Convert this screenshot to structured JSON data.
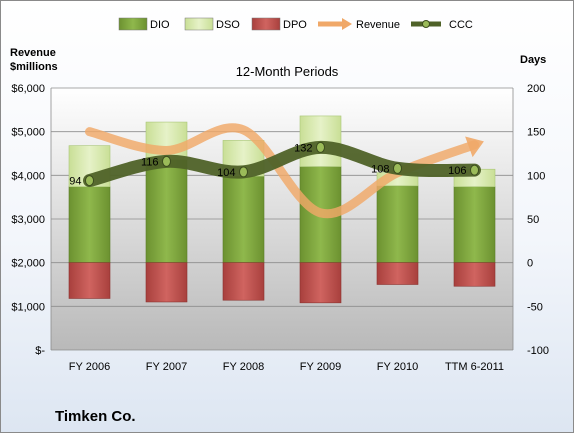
{
  "chart_data": {
    "type": "bar",
    "title": "12-Month Periods",
    "company": "Timken Co.",
    "left_axis_label_line1": "Revenue",
    "left_axis_label_line2": "$millions",
    "right_axis_label": "Days",
    "categories": [
      "FY 2006",
      "FY 2007",
      "FY 2008",
      "FY 2009",
      "FY 2010",
      "TTM 6-2011"
    ],
    "left_axis": {
      "min": 0,
      "max": 6000,
      "ticks": [
        "$-",
        "$1,000",
        "$2,000",
        "$3,000",
        "$4,000",
        "$5,000",
        "$6,000"
      ]
    },
    "right_axis": {
      "min": -100,
      "max": 200,
      "ticks": [
        "-100",
        "-50",
        "0",
        "50",
        "100",
        "150",
        "200"
      ]
    },
    "grid": true,
    "legend_position": "top",
    "series": [
      {
        "name": "DIO",
        "axis": "right",
        "kind": "stacked-bar",
        "color": "#7aa23a",
        "values": [
          87,
          118,
          99,
          110,
          88,
          87
        ]
      },
      {
        "name": "DSO",
        "axis": "right",
        "kind": "stacked-bar",
        "color": "#d4e8a8",
        "values": [
          47,
          43,
          41,
          58,
          15,
          20
        ]
      },
      {
        "name": "DPO",
        "axis": "right",
        "kind": "bar",
        "color": "#c0504d",
        "values": [
          -41,
          -45,
          -43,
          -46,
          -25,
          -27
        ]
      },
      {
        "name": "Revenue",
        "axis": "left",
        "kind": "line",
        "color": "#f0a868",
        "values": [
          5000,
          4570,
          5040,
          3140,
          4060,
          4700
        ]
      },
      {
        "name": "CCC",
        "axis": "right",
        "kind": "line",
        "color": "#4f6228",
        "values": [
          94,
          116,
          104,
          132,
          108,
          106
        ],
        "labels": [
          "94",
          "116",
          "104",
          "132",
          "108",
          "106"
        ]
      }
    ]
  }
}
